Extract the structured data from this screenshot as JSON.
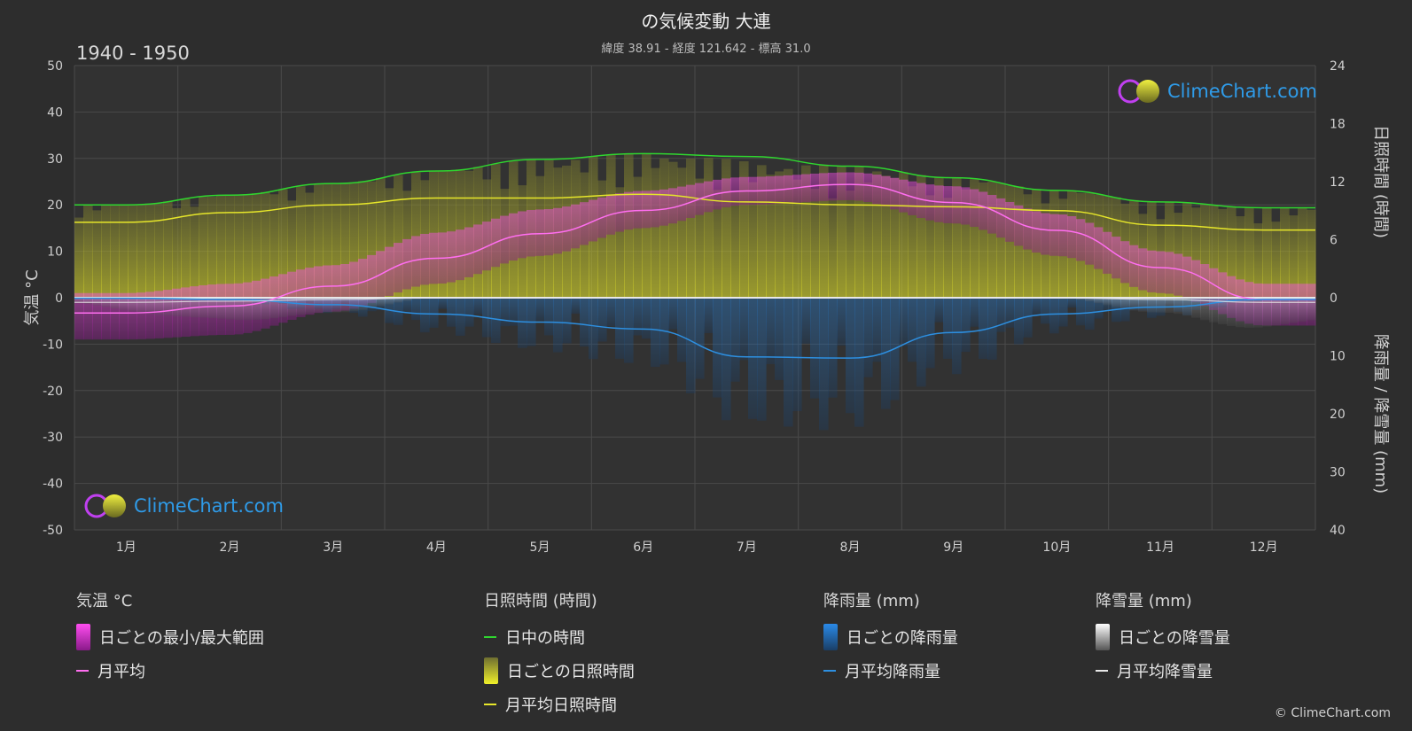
{
  "header": {
    "title": "の気候変動 大連",
    "subtitle": "緯度 38.91 - 経度 121.642 - 標高 31.0",
    "period": "1940 - 1950"
  },
  "watermark": {
    "text": "ClimeChart.com"
  },
  "copyright": "© ClimeChart.com",
  "colors": {
    "background": "#2d2d2d",
    "temp_range": "#d42bd4",
    "temp_mean": "#ff6ef0",
    "daylight": "#2fd62f",
    "sunshine_range": "#b7b73a",
    "sunshine_mean": "#e6e62a",
    "rain": "#2a7fd0",
    "rain_mean": "#2d8fe0",
    "snow": "#9a9a9a",
    "snow_mean": "#e8e8e8",
    "brand": "#2f9be8"
  },
  "chart_data": {
    "type": "line",
    "categories": [
      "1月",
      "2月",
      "3月",
      "4月",
      "5月",
      "6月",
      "7月",
      "8月",
      "9月",
      "10月",
      "11月",
      "12月"
    ],
    "axes": {
      "left": {
        "label": "気温 °C",
        "min": -50,
        "max": 50,
        "ticks": [
          50,
          40,
          30,
          20,
          10,
          0,
          -10,
          -20,
          -30,
          -40,
          -50
        ]
      },
      "right_top": {
        "label": "日照時間 (時間)",
        "min": 0,
        "max": 24,
        "ticks": [
          24,
          18,
          12,
          6,
          0
        ]
      },
      "right_bottom": {
        "label": "降雨量 / 降雪量 (mm)",
        "min": 0,
        "max": 40,
        "ticks": [
          0,
          10,
          20,
          30,
          40
        ]
      }
    },
    "series": [
      {
        "name": "日中の時間",
        "axis": "right_top",
        "values": [
          9.6,
          10.6,
          11.8,
          13.1,
          14.3,
          14.9,
          14.6,
          13.6,
          12.4,
          11.1,
          9.9,
          9.3
        ]
      },
      {
        "name": "月平均日照時間",
        "axis": "right_top",
        "values": [
          7.8,
          8.8,
          9.6,
          10.3,
          10.3,
          10.7,
          9.9,
          9.6,
          9.4,
          9.0,
          7.5,
          7.0
        ]
      },
      {
        "name": "月平均",
        "axis": "left",
        "values": [
          -3.3,
          -1.8,
          2.5,
          8.5,
          13.8,
          18.8,
          23.0,
          24.4,
          20.5,
          14.5,
          6.5,
          -0.4
        ]
      },
      {
        "name": "月平均降雨量",
        "axis": "right_bottom",
        "values": [
          0.1,
          0.3,
          1.2,
          2.8,
          4.2,
          5.4,
          10.2,
          10.4,
          6.0,
          2.8,
          1.6,
          0.3
        ]
      },
      {
        "name": "月平均降雪量",
        "axis": "right_bottom",
        "values": [
          0.8,
          0.6,
          0.3,
          0,
          0,
          0,
          0,
          0,
          0,
          0,
          0.3,
          0.8
        ]
      }
    ],
    "temp_daily_range": {
      "min": [
        -9,
        -8,
        -3,
        3,
        9,
        15,
        20,
        21,
        16,
        9,
        1,
        -6
      ],
      "max": [
        1,
        3,
        7,
        14,
        19,
        23,
        26,
        27,
        24,
        18,
        10,
        3
      ]
    },
    "grid": true
  },
  "legend": {
    "groups": [
      {
        "heading": "気温 °C",
        "items": [
          {
            "label": "日ごとの最小/最大範囲",
            "swatch": "box",
            "color": "#d42bd4"
          },
          {
            "label": "月平均",
            "swatch": "line",
            "color": "#ff6ef0"
          }
        ]
      },
      {
        "heading": "日照時間 (時間)",
        "items": [
          {
            "label": "日中の時間",
            "swatch": "line",
            "color": "#2fd62f"
          },
          {
            "label": "日ごとの日照時間",
            "swatch": "box",
            "color": "#c8c83a"
          },
          {
            "label": "月平均日照時間",
            "swatch": "line",
            "color": "#e6e62a"
          }
        ]
      },
      {
        "heading": "降雨量 (mm)",
        "items": [
          {
            "label": "日ごとの降雨量",
            "swatch": "box",
            "color": "#2a7fd0"
          },
          {
            "label": "月平均降雨量",
            "swatch": "line",
            "color": "#2d8fe0"
          }
        ]
      },
      {
        "heading": "降雪量 (mm)",
        "items": [
          {
            "label": "日ごとの降雪量",
            "swatch": "box",
            "color": "#cfcfcf"
          },
          {
            "label": "月平均降雪量",
            "swatch": "line",
            "color": "#e8e8e8"
          }
        ]
      }
    ]
  }
}
